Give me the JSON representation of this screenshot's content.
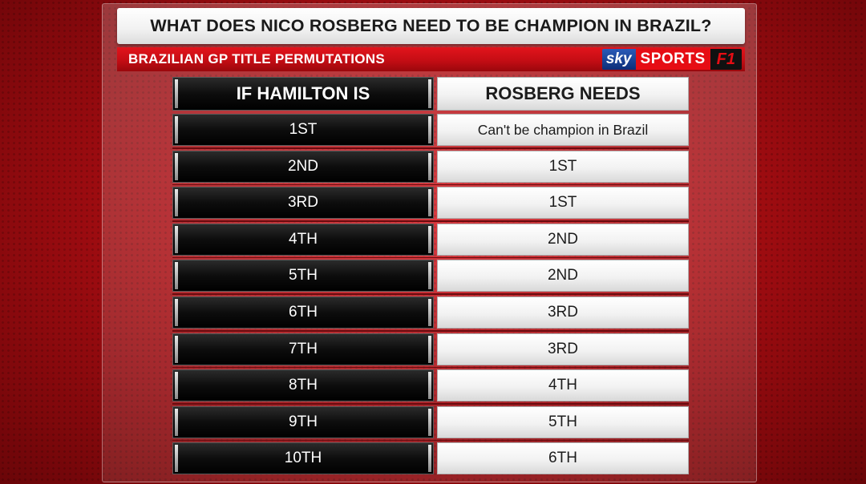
{
  "header": {
    "title": "WHAT DOES NICO ROSBERG NEED TO BE CHAMPION IN BRAZIL?",
    "subtitle": "BRAZILIAN GP TITLE PERMUTATIONS"
  },
  "logo": {
    "sky": "sky",
    "sports": "SPORTS",
    "f1": "F1"
  },
  "table": {
    "columns": [
      "IF HAMILTON IS",
      "ROSBERG NEEDS"
    ],
    "rows": [
      {
        "hamilton": "1ST",
        "rosberg": "Can't be champion in Brazil"
      },
      {
        "hamilton": "2ND",
        "rosberg": "1ST"
      },
      {
        "hamilton": "3RD",
        "rosberg": "1ST"
      },
      {
        "hamilton": "4TH",
        "rosberg": "2ND"
      },
      {
        "hamilton": "5TH",
        "rosberg": "2ND"
      },
      {
        "hamilton": "6TH",
        "rosberg": "3RD"
      },
      {
        "hamilton": "7TH",
        "rosberg": "3RD"
      },
      {
        "hamilton": "8TH",
        "rosberg": "4TH"
      },
      {
        "hamilton": "9TH",
        "rosberg": "5TH"
      },
      {
        "hamilton": "10TH",
        "rosberg": "6TH"
      }
    ]
  },
  "colors": {
    "accent_red": "#e3141c",
    "dark_cell": "#0d0d0d",
    "light_cell": "#f2f2f2"
  }
}
